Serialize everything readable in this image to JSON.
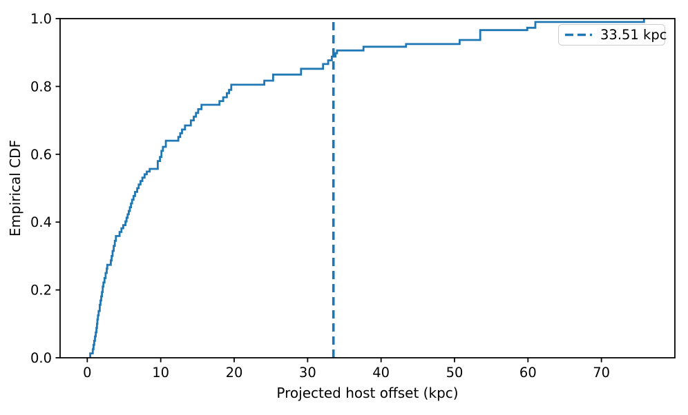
{
  "figure": {
    "background": "#ffffff"
  },
  "chart_data": {
    "type": "line",
    "subtype": "empirical-cdf-step",
    "title": "",
    "xlabel": "Projected host offset (kpc)",
    "ylabel": "Empirical CDF",
    "xlim": [
      -3.7,
      80.0
    ],
    "ylim": [
      0.0,
      1.0
    ],
    "x_ticks": [
      0,
      10,
      20,
      30,
      40,
      50,
      60,
      70
    ],
    "x_tick_labels": [
      "0",
      "10",
      "20",
      "30",
      "40",
      "50",
      "60",
      "70"
    ],
    "y_ticks": [
      0.0,
      0.2,
      0.4,
      0.6,
      0.8,
      1.0
    ],
    "y_tick_labels": [
      "0.0",
      "0.2",
      "0.4",
      "0.6",
      "0.8",
      "1.0"
    ],
    "grid": false,
    "legend": {
      "position": "upper right",
      "label": "33.51 kpc",
      "line_style": "dashed"
    },
    "vline": {
      "x": 33.51,
      "style": "dashed",
      "label": "33.51 kpc"
    },
    "colors": {
      "curve": "#1f77b4",
      "vline": "#1f77b4",
      "axis": "#000000",
      "legend_border": "#cccccc",
      "legend_background": "#ffffff"
    },
    "ecdf_steps": [
      [
        0.4,
        0.013
      ],
      [
        0.75,
        0.025
      ],
      [
        0.85,
        0.038
      ],
      [
        0.95,
        0.05
      ],
      [
        1.05,
        0.063
      ],
      [
        1.15,
        0.075
      ],
      [
        1.25,
        0.088
      ],
      [
        1.32,
        0.1
      ],
      [
        1.38,
        0.113
      ],
      [
        1.45,
        0.125
      ],
      [
        1.55,
        0.138
      ],
      [
        1.7,
        0.156
      ],
      [
        1.8,
        0.169
      ],
      [
        1.9,
        0.181
      ],
      [
        2.0,
        0.194
      ],
      [
        2.1,
        0.21
      ],
      [
        2.2,
        0.222
      ],
      [
        2.35,
        0.235
      ],
      [
        2.5,
        0.25
      ],
      [
        2.65,
        0.263
      ],
      [
        2.72,
        0.274
      ],
      [
        3.2,
        0.287
      ],
      [
        3.32,
        0.3
      ],
      [
        3.45,
        0.315
      ],
      [
        3.6,
        0.33
      ],
      [
        3.75,
        0.345
      ],
      [
        3.9,
        0.359
      ],
      [
        4.4,
        0.371
      ],
      [
        4.65,
        0.382
      ],
      [
        4.9,
        0.391
      ],
      [
        5.2,
        0.402
      ],
      [
        5.35,
        0.413
      ],
      [
        5.5,
        0.423
      ],
      [
        5.65,
        0.433
      ],
      [
        5.8,
        0.444
      ],
      [
        5.95,
        0.455
      ],
      [
        6.1,
        0.466
      ],
      [
        6.3,
        0.477
      ],
      [
        6.5,
        0.489
      ],
      [
        6.8,
        0.5
      ],
      [
        7.0,
        0.511
      ],
      [
        7.25,
        0.521
      ],
      [
        7.5,
        0.531
      ],
      [
        7.8,
        0.541
      ],
      [
        8.1,
        0.549
      ],
      [
        8.5,
        0.557
      ],
      [
        9.6,
        0.58
      ],
      [
        9.9,
        0.592
      ],
      [
        10.1,
        0.61
      ],
      [
        10.3,
        0.622
      ],
      [
        10.7,
        0.64
      ],
      [
        12.4,
        0.651
      ],
      [
        12.65,
        0.662
      ],
      [
        12.9,
        0.673
      ],
      [
        13.3,
        0.685
      ],
      [
        14.1,
        0.7
      ],
      [
        14.5,
        0.711
      ],
      [
        14.8,
        0.722
      ],
      [
        15.1,
        0.733
      ],
      [
        15.55,
        0.746
      ],
      [
        18.0,
        0.757
      ],
      [
        18.5,
        0.768
      ],
      [
        19.0,
        0.78
      ],
      [
        19.3,
        0.79
      ],
      [
        19.6,
        0.805
      ],
      [
        24.1,
        0.817
      ],
      [
        25.3,
        0.835
      ],
      [
        29.1,
        0.852
      ],
      [
        32.1,
        0.866
      ],
      [
        32.8,
        0.877
      ],
      [
        33.3,
        0.888
      ],
      [
        33.8,
        0.898
      ],
      [
        34.0,
        0.906
      ],
      [
        37.6,
        0.917
      ],
      [
        43.4,
        0.925
      ],
      [
        50.7,
        0.937
      ],
      [
        53.5,
        0.966
      ],
      [
        59.9,
        0.973
      ],
      [
        61.0,
        0.99
      ],
      [
        75.8,
        1.0
      ]
    ]
  }
}
